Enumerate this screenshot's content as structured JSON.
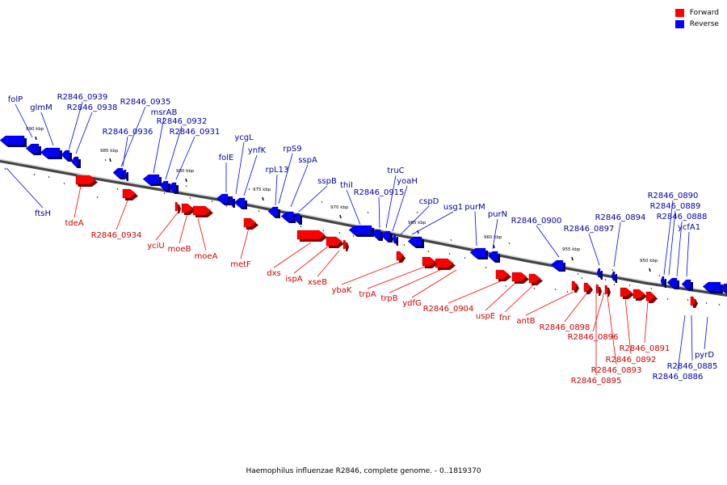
{
  "legend": [
    {
      "label": "Forward",
      "color": "#ff0000"
    },
    {
      "label": "Reverse",
      "color": "#0000ff"
    }
  ],
  "colors": {
    "forward": "#ff0000",
    "reverse": "#0000ff",
    "forward_label": "#cc0000",
    "reverse_label": "#00009e",
    "backbone": "#808080"
  },
  "footer": "Haemophilus influenzae R2846, complete genome. - 0..1819370",
  "ticks": [
    "990 kbp",
    "985 kbp",
    "980 kbp",
    "975 kbp",
    "970 kbp",
    "965 kbp",
    "960 kbp",
    "955 kbp",
    "950 kbp"
  ],
  "forward_genes": [
    "tdeA",
    "R2846_0934",
    "yciU",
    "moeB",
    "moeA",
    "metF",
    "dxs",
    "ispA",
    "xseB",
    "ybaK",
    "trpA",
    "trpB",
    "ydfG",
    "R2846_0904",
    "uspE",
    "fnr",
    "antB",
    "R2846_0898",
    "R2846_0896",
    "R2846_0895",
    "R2846_0893",
    "R2846_0892",
    "R2846_0891"
  ],
  "reverse_genes": [
    "folP",
    "glmM",
    "R2846_0939",
    "R2846_0938",
    "ftsH",
    "R2846_0935",
    "R2846_0936",
    "msrAB",
    "R2846_0932",
    "R2846_0931",
    "ycgL",
    "folE",
    "ynfK",
    "rpS9",
    "rpL13",
    "sspA",
    "sspB",
    "thiI",
    "R2846_0915",
    "truC",
    "yoaH",
    "cspD",
    "usg1",
    "purM",
    "purN",
    "R2846_0900",
    "R2846_0897",
    "R2846_0894",
    "R2846_0890",
    "R2846_0889",
    "R2846_0888",
    "ycfA1",
    "pyrD",
    "R2846_0885",
    "R2846_0886"
  ]
}
